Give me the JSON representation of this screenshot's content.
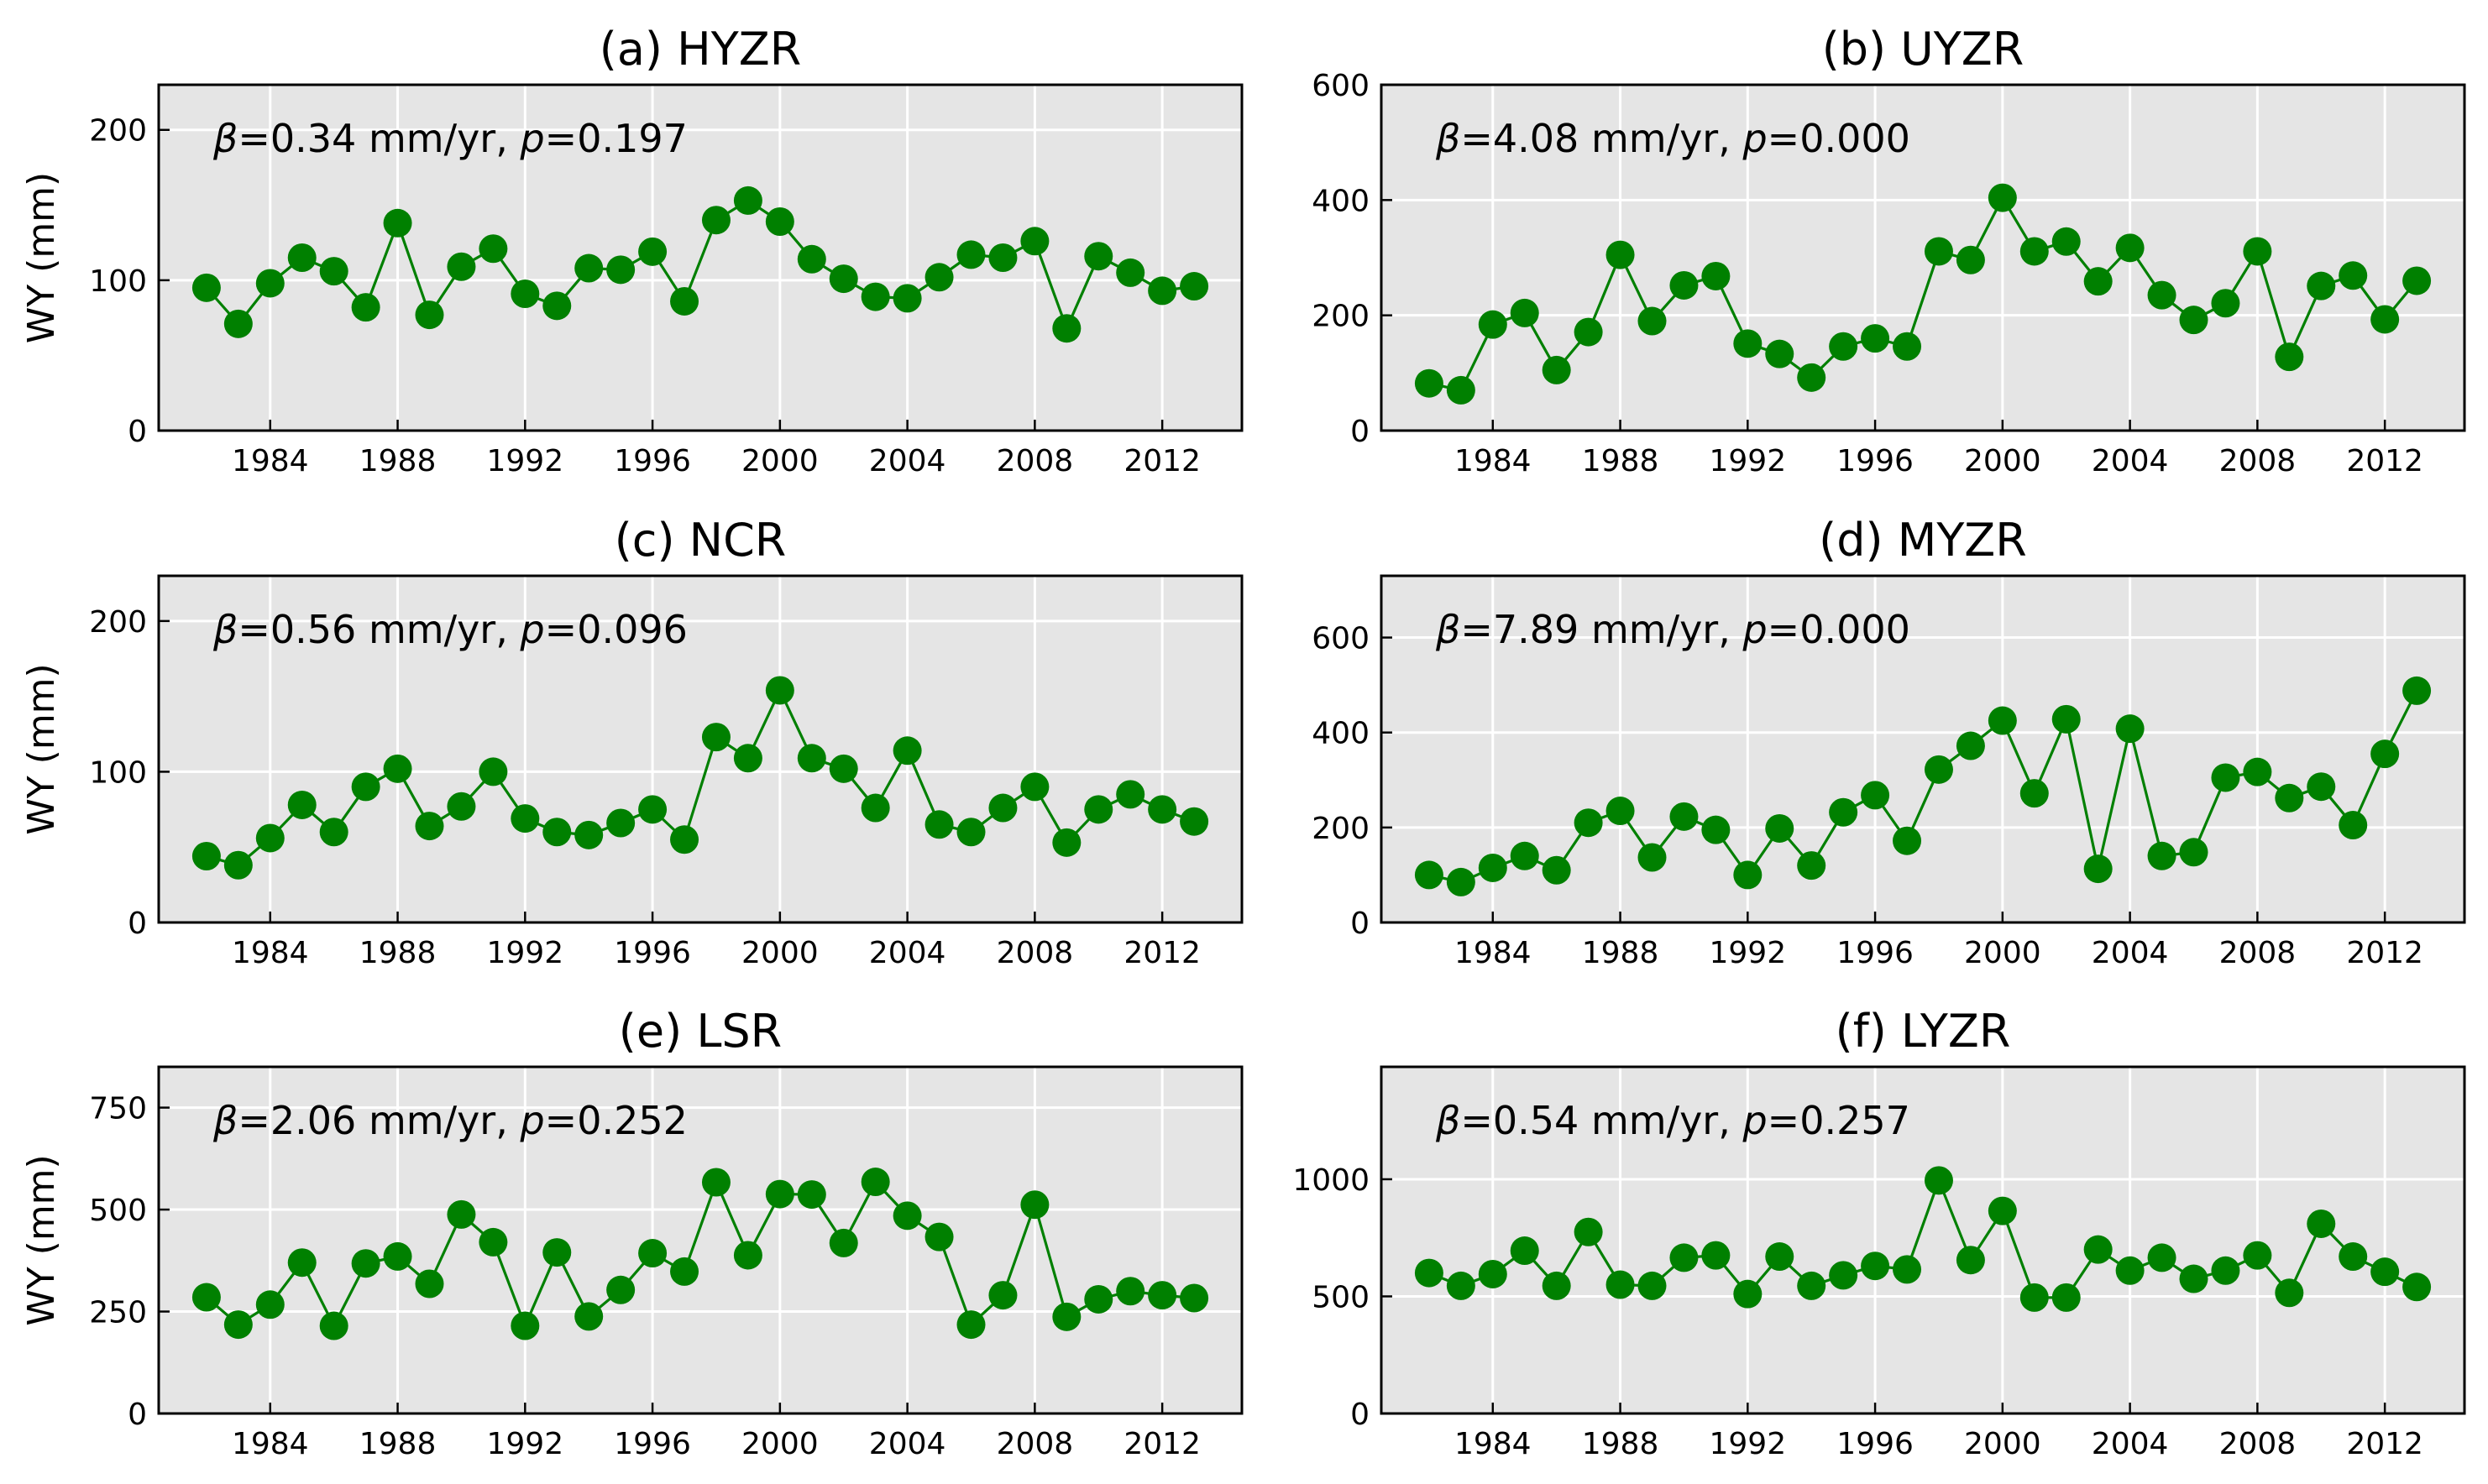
{
  "chart_data": [
    {
      "type": "line",
      "title": "(a) HYZR",
      "ylabel": "WY (mm)",
      "annotation": {
        "beta": "β",
        "beta_text": "=0.34 mm/yr, ",
        "p": "p",
        "p_text": "=0.197"
      },
      "x": [
        1982,
        1983,
        1984,
        1985,
        1986,
        1987,
        1988,
        1989,
        1990,
        1991,
        1992,
        1993,
        1994,
        1995,
        1996,
        1997,
        1998,
        1999,
        2000,
        2001,
        2002,
        2003,
        2004,
        2005,
        2006,
        2007,
        2008,
        2009,
        2010,
        2011,
        2012,
        2013
      ],
      "values": [
        95,
        71,
        98,
        115,
        106,
        82,
        138,
        77,
        109,
        121,
        91,
        83,
        108,
        107,
        119,
        86,
        140,
        153,
        139,
        114,
        101,
        89,
        88,
        102,
        117,
        115,
        126,
        68,
        116,
        105,
        93,
        96
      ],
      "xlim": [
        1980.5,
        2014.5
      ],
      "ylim": [
        0,
        230
      ],
      "xticks": [
        1984,
        1988,
        1992,
        1996,
        2000,
        2004,
        2008,
        2012
      ],
      "yticks": [
        0,
        100,
        200
      ],
      "grid": true,
      "color": "#008000",
      "background": "#e5e5e5"
    },
    {
      "type": "line",
      "title": "(b) UYZR",
      "ylabel": "",
      "annotation": {
        "beta": "β",
        "beta_text": "=4.08 mm/yr, ",
        "p": "p",
        "p_text": "=0.000"
      },
      "x": [
        1982,
        1983,
        1984,
        1985,
        1986,
        1987,
        1988,
        1989,
        1990,
        1991,
        1992,
        1993,
        1994,
        1995,
        1996,
        1997,
        1998,
        1999,
        2000,
        2001,
        2002,
        2003,
        2004,
        2005,
        2006,
        2007,
        2008,
        2009,
        2010,
        2011,
        2012,
        2013
      ],
      "values": [
        82,
        70,
        184,
        204,
        105,
        171,
        305,
        190,
        252,
        268,
        151,
        133,
        92,
        146,
        160,
        146,
        311,
        296,
        404,
        311,
        328,
        259,
        317,
        235,
        192,
        221,
        311,
        128,
        251,
        269,
        193,
        260
      ],
      "xlim": [
        1980.5,
        2014.5
      ],
      "ylim": [
        0,
        600
      ],
      "xticks": [
        1984,
        1988,
        1992,
        1996,
        2000,
        2004,
        2008,
        2012
      ],
      "yticks": [
        0,
        200,
        400,
        600
      ],
      "grid": true,
      "color": "#008000",
      "background": "#e5e5e5"
    },
    {
      "type": "line",
      "title": "(c) NCR",
      "ylabel": "WY (mm)",
      "annotation": {
        "beta": "β",
        "beta_text": "=0.56 mm/yr, ",
        "p": "p",
        "p_text": "=0.096"
      },
      "x": [
        1982,
        1983,
        1984,
        1985,
        1986,
        1987,
        1988,
        1989,
        1990,
        1991,
        1992,
        1993,
        1994,
        1995,
        1996,
        1997,
        1998,
        1999,
        2000,
        2001,
        2002,
        2003,
        2004,
        2005,
        2006,
        2007,
        2008,
        2009,
        2010,
        2011,
        2012,
        2013
      ],
      "values": [
        44,
        38,
        56,
        78,
        60,
        90,
        102,
        64,
        77,
        100,
        69,
        60,
        58,
        66,
        75,
        55,
        123,
        109,
        154,
        109,
        102,
        76,
        114,
        65,
        60,
        76,
        90,
        53,
        75,
        85,
        75,
        67
      ],
      "xlim": [
        1980.5,
        2014.5
      ],
      "ylim": [
        0,
        230
      ],
      "xticks": [
        1984,
        1988,
        1992,
        1996,
        2000,
        2004,
        2008,
        2012
      ],
      "yticks": [
        0,
        100,
        200
      ],
      "grid": true,
      "color": "#008000",
      "background": "#e5e5e5"
    },
    {
      "type": "line",
      "title": "(d) MYZR",
      "ylabel": "",
      "annotation": {
        "beta": "β",
        "beta_text": "=7.89 mm/yr, ",
        "p": "p",
        "p_text": "=0.000"
      },
      "x": [
        1982,
        1983,
        1984,
        1985,
        1986,
        1987,
        1988,
        1989,
        1990,
        1991,
        1992,
        1993,
        1994,
        1995,
        1996,
        1997,
        1998,
        1999,
        2000,
        2001,
        2002,
        2003,
        2004,
        2005,
        2006,
        2007,
        2008,
        2009,
        2010,
        2011,
        2012,
        2013
      ],
      "values": [
        100,
        85,
        115,
        140,
        110,
        210,
        235,
        137,
        223,
        195,
        100,
        198,
        120,
        232,
        268,
        172,
        322,
        372,
        425,
        272,
        428,
        113,
        408,
        140,
        148,
        305,
        317,
        262,
        286,
        205,
        355,
        488
      ],
      "xlim": [
        1980.5,
        2014.5
      ],
      "ylim": [
        0,
        730
      ],
      "xticks": [
        1984,
        1988,
        1992,
        1996,
        2000,
        2004,
        2008,
        2012
      ],
      "yticks": [
        0,
        200,
        400,
        600
      ],
      "grid": true,
      "color": "#008000",
      "background": "#e5e5e5"
    },
    {
      "type": "line",
      "title": "(e) LSR",
      "ylabel": "WY (mm)",
      "annotation": {
        "beta": "β",
        "beta_text": "=2.06 mm/yr, ",
        "p": "p",
        "p_text": "=0.252"
      },
      "x": [
        1982,
        1983,
        1984,
        1985,
        1986,
        1987,
        1988,
        1989,
        1990,
        1991,
        1992,
        1993,
        1994,
        1995,
        1996,
        1997,
        1998,
        1999,
        2000,
        2001,
        2002,
        2003,
        2004,
        2005,
        2006,
        2007,
        2008,
        2009,
        2010,
        2011,
        2012,
        2013
      ],
      "values": [
        285,
        218,
        267,
        370,
        215,
        368,
        385,
        318,
        488,
        420,
        215,
        395,
        238,
        303,
        393,
        348,
        567,
        388,
        538,
        537,
        418,
        568,
        485,
        433,
        218,
        290,
        512,
        237,
        280,
        300,
        290,
        283
      ],
      "xlim": [
        1980.5,
        2014.5
      ],
      "ylim": [
        0,
        850
      ],
      "xticks": [
        1984,
        1988,
        1992,
        1996,
        2000,
        2004,
        2008,
        2012
      ],
      "yticks": [
        0,
        250,
        500,
        750
      ],
      "grid": true,
      "color": "#008000",
      "background": "#e5e5e5"
    },
    {
      "type": "line",
      "title": "(f) LYZR",
      "ylabel": "",
      "annotation": {
        "beta": "β",
        "beta_text": "=0.54 mm/yr, ",
        "p": "p",
        "p_text": "=0.257"
      },
      "x": [
        1982,
        1983,
        1984,
        1985,
        1986,
        1987,
        1988,
        1989,
        1990,
        1991,
        1992,
        1993,
        1994,
        1995,
        1996,
        1997,
        1998,
        1999,
        2000,
        2001,
        2002,
        2003,
        2004,
        2005,
        2006,
        2007,
        2008,
        2009,
        2010,
        2011,
        2012,
        2013
      ],
      "values": [
        600,
        545,
        595,
        695,
        545,
        775,
        550,
        545,
        665,
        675,
        510,
        670,
        545,
        590,
        630,
        615,
        995,
        655,
        865,
        495,
        495,
        700,
        610,
        665,
        575,
        610,
        675,
        515,
        810,
        670,
        605,
        540
      ],
      "xlim": [
        1980.5,
        2014.5
      ],
      "ylim": [
        0,
        1480
      ],
      "xticks": [
        1984,
        1988,
        1992,
        1996,
        2000,
        2004,
        2008,
        2012
      ],
      "yticks": [
        0,
        500,
        1000
      ],
      "grid": true,
      "color": "#008000",
      "background": "#e5e5e5"
    }
  ]
}
